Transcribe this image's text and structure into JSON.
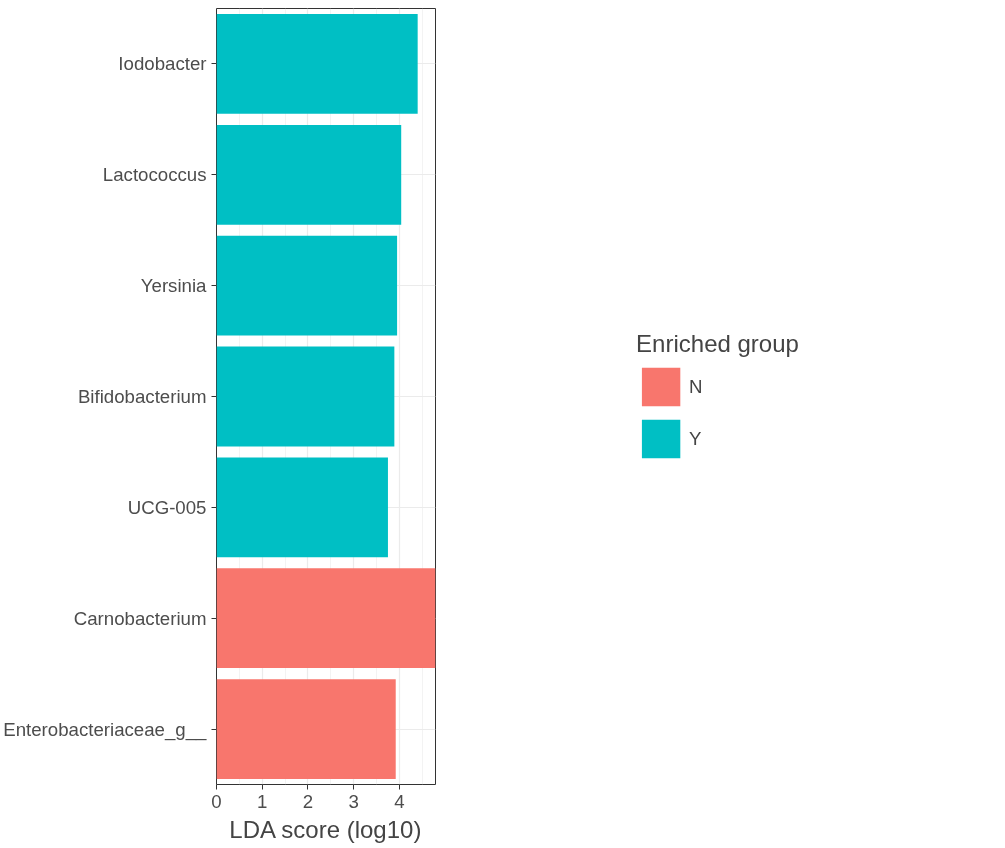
{
  "chart_data": {
    "type": "bar",
    "orientation": "horizontal",
    "xlabel": "LDA score (log10)",
    "legend_title": "Enriched group",
    "categories": [
      "Iodobacter",
      "Lactococcus",
      "Yersinia",
      "Bifidobacterium",
      "UCG-005",
      "Carnobacterium",
      "Enterobacteriaceae_g__"
    ],
    "series": [
      {
        "name": "N",
        "color": "#f8766d",
        "values": [
          null,
          null,
          null,
          null,
          null,
          4.79,
          3.92
        ]
      },
      {
        "name": "Y",
        "color": "#00bfc4",
        "values": [
          4.4,
          4.04,
          3.95,
          3.89,
          3.75,
          null,
          null
        ]
      }
    ],
    "xlim": [
      0,
      4.79
    ],
    "xticks": [
      0,
      1,
      2,
      3,
      4
    ],
    "grid": true,
    "legend": "right"
  }
}
